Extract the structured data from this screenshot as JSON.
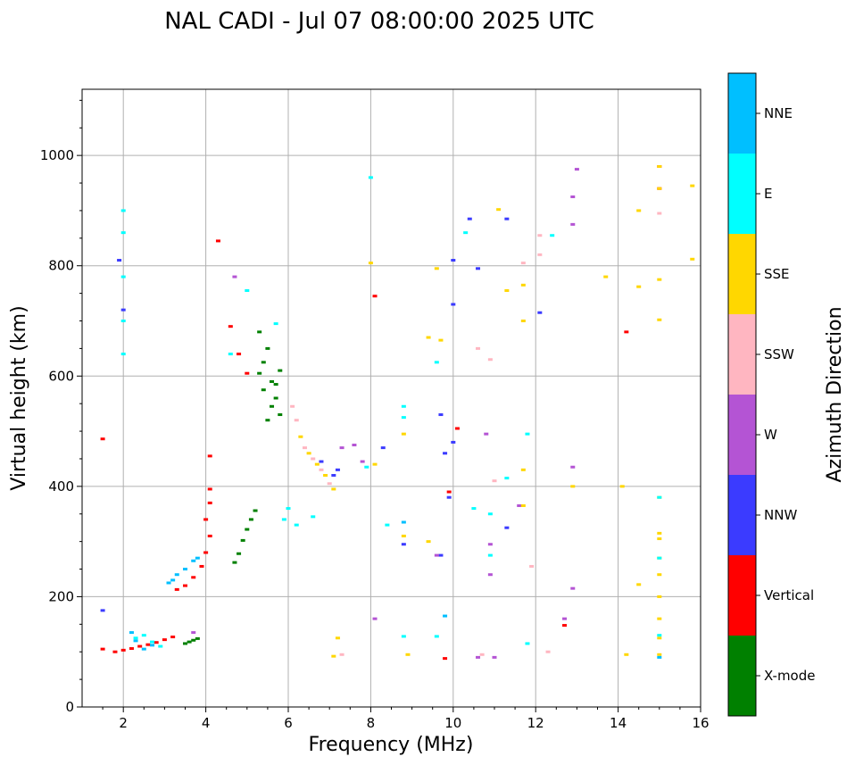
{
  "chart_data": {
    "type": "scatter",
    "title": "NAL CADI - Jul 07 08:00:00 2025 UTC",
    "xlabel": "Frequency (MHz)",
    "ylabel": "Virtual height (km)",
    "xlim": [
      1,
      16
    ],
    "ylim": [
      0,
      1120
    ],
    "xticks": [
      "2",
      "4",
      "6",
      "8",
      "10",
      "12",
      "14",
      "16"
    ],
    "yticks": [
      "0",
      "200",
      "400",
      "600",
      "800",
      "1000"
    ],
    "grid": true,
    "colorbar": {
      "label": "Azimuth Direction",
      "categories": [
        "X-mode",
        "Vertical",
        "NNW",
        "W",
        "SSW",
        "SSE",
        "E",
        "NNE"
      ],
      "colors": [
        "#008000",
        "#ff0000",
        "#3b3bff",
        "#b454d4",
        "#ffb6c1",
        "#ffd700",
        "#00ffff",
        "#00bfff"
      ]
    },
    "series": [
      {
        "name": "X-mode",
        "points": [
          [
            3.5,
            115
          ],
          [
            3.6,
            118
          ],
          [
            3.7,
            121
          ],
          [
            3.8,
            124
          ],
          [
            4.7,
            262
          ],
          [
            4.8,
            278
          ],
          [
            4.9,
            302
          ],
          [
            5.0,
            322
          ],
          [
            5.1,
            340
          ],
          [
            5.2,
            356
          ],
          [
            5.3,
            605
          ],
          [
            5.4,
            625
          ],
          [
            5.5,
            650
          ],
          [
            5.6,
            590
          ],
          [
            5.7,
            560
          ],
          [
            5.8,
            530
          ],
          [
            5.5,
            520
          ],
          [
            5.6,
            545
          ],
          [
            5.7,
            585
          ],
          [
            5.8,
            610
          ],
          [
            5.4,
            575
          ],
          [
            5.3,
            680
          ]
        ]
      },
      {
        "name": "Vertical",
        "points": [
          [
            1.5,
            486
          ],
          [
            1.5,
            105
          ],
          [
            1.8,
            100
          ],
          [
            2.0,
            103
          ],
          [
            2.2,
            106
          ],
          [
            2.4,
            110
          ],
          [
            2.6,
            113
          ],
          [
            2.8,
            117
          ],
          [
            3.0,
            122
          ],
          [
            3.2,
            127
          ],
          [
            3.3,
            213
          ],
          [
            3.5,
            220
          ],
          [
            3.7,
            235
          ],
          [
            3.9,
            255
          ],
          [
            4.0,
            280
          ],
          [
            4.1,
            310
          ],
          [
            4.0,
            340
          ],
          [
            4.1,
            370
          ],
          [
            4.1,
            395
          ],
          [
            4.1,
            455
          ],
          [
            4.3,
            845
          ],
          [
            4.6,
            690
          ],
          [
            4.8,
            640
          ],
          [
            5.0,
            605
          ],
          [
            8.1,
            745
          ],
          [
            9.8,
            88
          ],
          [
            9.9,
            390
          ],
          [
            10.1,
            505
          ],
          [
            12.7,
            148
          ],
          [
            14.2,
            680
          ],
          [
            15.0,
            940
          ],
          [
            15.0,
            980
          ]
        ]
      },
      {
        "name": "NNW",
        "points": [
          [
            1.5,
            175
          ],
          [
            1.9,
            810
          ],
          [
            2.0,
            720
          ],
          [
            6.8,
            445
          ],
          [
            7.1,
            420
          ],
          [
            7.2,
            430
          ],
          [
            8.3,
            470
          ],
          [
            9.8,
            460
          ],
          [
            9.9,
            380
          ],
          [
            10.0,
            730
          ],
          [
            10.0,
            810
          ],
          [
            10.0,
            480
          ],
          [
            10.4,
            885
          ],
          [
            10.6,
            795
          ],
          [
            11.3,
            885
          ],
          [
            11.3,
            325
          ],
          [
            12.1,
            715
          ],
          [
            8.8,
            295
          ],
          [
            9.7,
            275
          ],
          [
            9.7,
            530
          ]
        ]
      },
      {
        "name": "W",
        "points": [
          [
            3.7,
            135
          ],
          [
            4.7,
            780
          ],
          [
            7.3,
            470
          ],
          [
            7.6,
            475
          ],
          [
            7.8,
            445
          ],
          [
            8.1,
            160
          ],
          [
            9.6,
            275
          ],
          [
            10.8,
            495
          ],
          [
            10.9,
            295
          ],
          [
            10.9,
            240
          ],
          [
            11.6,
            365
          ],
          [
            12.7,
            160
          ],
          [
            12.9,
            215
          ],
          [
            12.9,
            435
          ],
          [
            12.9,
            875
          ],
          [
            12.9,
            925
          ],
          [
            13.0,
            975
          ],
          [
            10.6,
            90
          ],
          [
            11.0,
            90
          ]
        ]
      },
      {
        "name": "SSW",
        "points": [
          [
            6.1,
            545
          ],
          [
            6.2,
            520
          ],
          [
            6.4,
            470
          ],
          [
            6.6,
            450
          ],
          [
            6.8,
            430
          ],
          [
            7.0,
            405
          ],
          [
            7.3,
            95
          ],
          [
            10.7,
            95
          ],
          [
            11.9,
            255
          ],
          [
            12.1,
            820
          ],
          [
            12.1,
            855
          ],
          [
            11.7,
            805
          ],
          [
            11.0,
            410
          ],
          [
            10.9,
            630
          ],
          [
            10.6,
            650
          ],
          [
            15.0,
            895
          ],
          [
            12.3,
            100
          ]
        ]
      },
      {
        "name": "SSE",
        "points": [
          [
            6.3,
            490
          ],
          [
            6.5,
            460
          ],
          [
            6.7,
            440
          ],
          [
            6.9,
            420
          ],
          [
            7.1,
            395
          ],
          [
            7.1,
            92
          ],
          [
            7.2,
            125
          ],
          [
            8.0,
            805
          ],
          [
            8.1,
            440
          ],
          [
            8.8,
            495
          ],
          [
            8.8,
            310
          ],
          [
            8.9,
            95
          ],
          [
            9.4,
            300
          ],
          [
            9.4,
            670
          ],
          [
            9.6,
            795
          ],
          [
            9.7,
            665
          ],
          [
            11.1,
            902
          ],
          [
            11.3,
            755
          ],
          [
            11.7,
            765
          ],
          [
            11.7,
            700
          ],
          [
            11.7,
            430
          ],
          [
            11.7,
            365
          ],
          [
            12.9,
            400
          ],
          [
            13.7,
            780
          ],
          [
            14.1,
            400
          ],
          [
            14.2,
            95
          ],
          [
            14.5,
            900
          ],
          [
            14.5,
            762
          ],
          [
            14.5,
            222
          ],
          [
            15.0,
            980
          ],
          [
            15.0,
            940
          ],
          [
            15.0,
            775
          ],
          [
            15.0,
            702
          ],
          [
            15.0,
            380
          ],
          [
            15.0,
            315
          ],
          [
            15.0,
            305
          ],
          [
            15.0,
            270
          ],
          [
            15.0,
            240
          ],
          [
            15.0,
            200
          ],
          [
            15.0,
            160
          ],
          [
            15.0,
            125
          ],
          [
            15.0,
            95
          ],
          [
            15.8,
            945
          ],
          [
            15.8,
            812
          ]
        ]
      },
      {
        "name": "E",
        "points": [
          [
            2.0,
            900
          ],
          [
            2.0,
            860
          ],
          [
            2.0,
            780
          ],
          [
            2.0,
            700
          ],
          [
            2.0,
            640
          ],
          [
            2.3,
            125
          ],
          [
            2.5,
            130
          ],
          [
            2.7,
            118
          ],
          [
            2.9,
            110
          ],
          [
            4.6,
            640
          ],
          [
            5.0,
            755
          ],
          [
            5.7,
            695
          ],
          [
            5.9,
            340
          ],
          [
            6.0,
            360
          ],
          [
            6.2,
            330
          ],
          [
            6.6,
            345
          ],
          [
            7.9,
            435
          ],
          [
            8.0,
            960
          ],
          [
            8.4,
            330
          ],
          [
            8.8,
            545
          ],
          [
            8.8,
            525
          ],
          [
            8.8,
            128
          ],
          [
            9.6,
            625
          ],
          [
            9.6,
            128
          ],
          [
            10.3,
            860
          ],
          [
            10.5,
            360
          ],
          [
            10.9,
            350
          ],
          [
            10.9,
            275
          ],
          [
            11.3,
            415
          ],
          [
            11.8,
            115
          ],
          [
            11.8,
            495
          ],
          [
            12.4,
            855
          ],
          [
            15.0,
            270
          ],
          [
            15.0,
            380
          ],
          [
            15.0,
            130
          ]
        ]
      },
      {
        "name": "NNE",
        "points": [
          [
            2.2,
            135
          ],
          [
            2.3,
            120
          ],
          [
            2.5,
            105
          ],
          [
            2.7,
            112
          ],
          [
            3.1,
            225
          ],
          [
            3.2,
            230
          ],
          [
            3.3,
            240
          ],
          [
            3.5,
            250
          ],
          [
            3.7,
            265
          ],
          [
            3.8,
            270
          ],
          [
            8.8,
            335
          ],
          [
            9.8,
            165
          ],
          [
            15.0,
            90
          ]
        ]
      }
    ]
  }
}
